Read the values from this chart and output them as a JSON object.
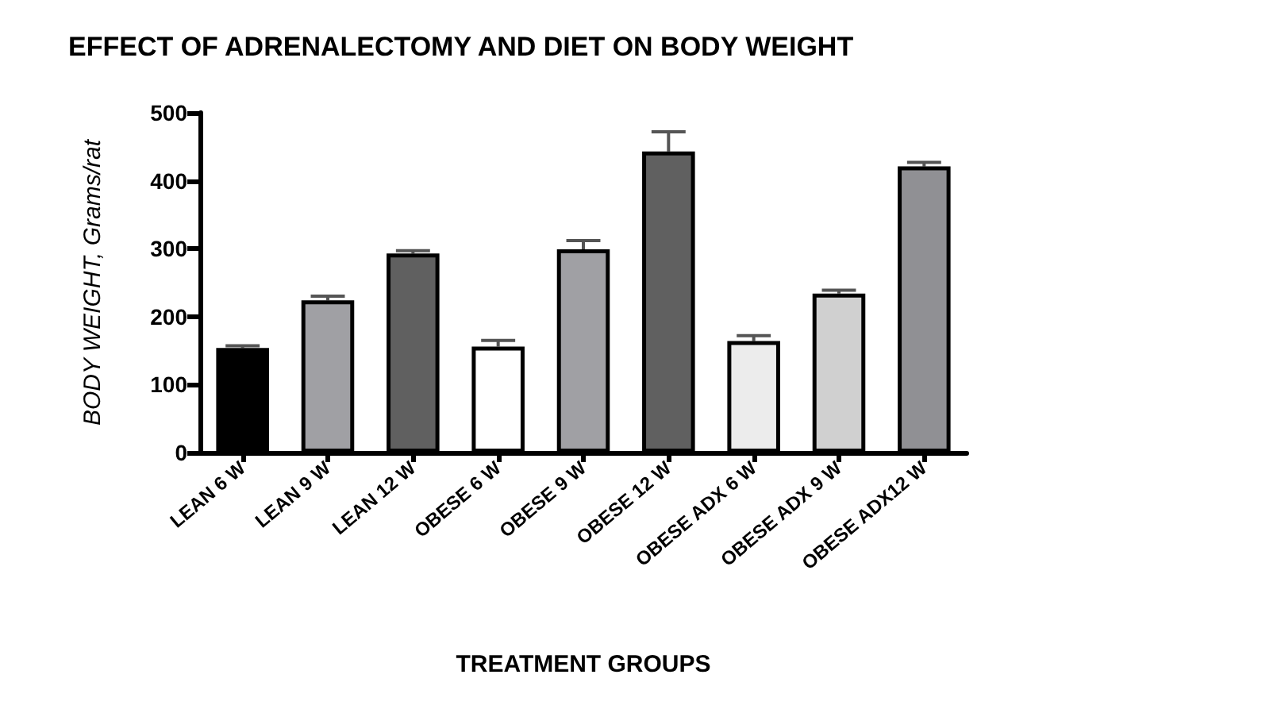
{
  "chart_data": {
    "type": "bar",
    "title": "EFFECT OF ADRENALECTOMY AND DIET ON BODY WEIGHT",
    "xlabel": "TREATMENT GROUPS",
    "ylabel": "BODY WEIGHT, Grams/rat",
    "categories": [
      "LEAN 6 W",
      "LEAN 9 W",
      "LEAN 12 W",
      "OBESE 6 W",
      "OBESE 9 W",
      "OBESE 12 W",
      "OBESE ADX 6 W",
      "OBESE ADX 9 W",
      "OBESE ADX12 W"
    ],
    "values": [
      154,
      224,
      293,
      156,
      299,
      443,
      164,
      234,
      421
    ],
    "errors": [
      [
        154,
        157
      ],
      [
        224,
        230
      ],
      [
        293,
        297
      ],
      [
        156,
        165
      ],
      [
        299,
        312
      ],
      [
        443,
        472
      ],
      [
        164,
        172
      ],
      [
        234,
        239
      ],
      [
        421,
        427
      ]
    ],
    "colors": [
      "#000000",
      "#a0a0a4",
      "#606060",
      "#ffffff",
      "#a0a0a4",
      "#606060",
      "#ececec",
      "#d0d0d0",
      "#909094"
    ],
    "ylim": [
      0,
      500
    ],
    "yticks": [
      0,
      100,
      200,
      300,
      400,
      500
    ],
    "grid": false
  }
}
